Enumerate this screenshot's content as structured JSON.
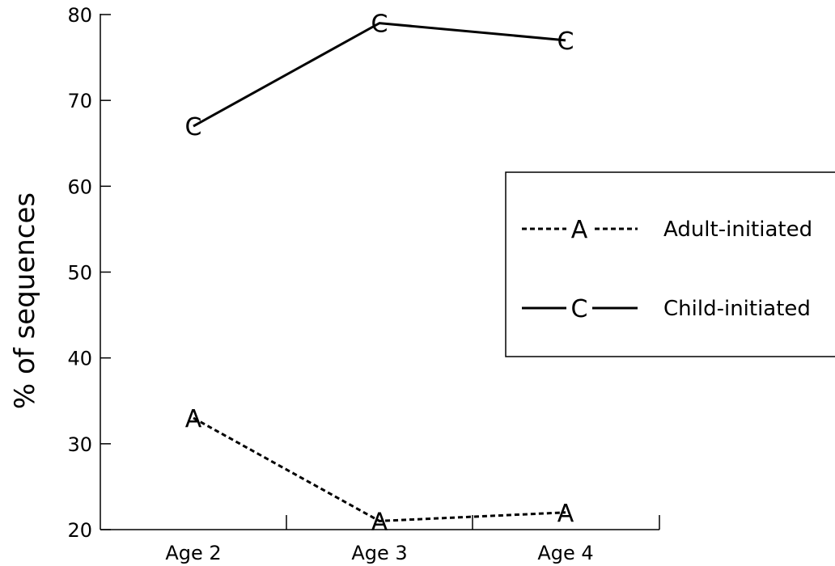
{
  "chart_data": {
    "type": "line",
    "categories": [
      "Age 2",
      "Age 3",
      "Age 4"
    ],
    "ylabel": "% of sequences",
    "ylim": [
      20,
      80
    ],
    "yticks": [
      20,
      30,
      40,
      50,
      60,
      70,
      80
    ],
    "grid": false,
    "legend_position": "right",
    "series": [
      {
        "name": "Adult-initiated",
        "marker": "A",
        "line_style": "dashed",
        "values": [
          33,
          21,
          22
        ]
      },
      {
        "name": "Child-initiated",
        "marker": "C",
        "line_style": "solid",
        "values": [
          67,
          79,
          77
        ]
      }
    ]
  }
}
